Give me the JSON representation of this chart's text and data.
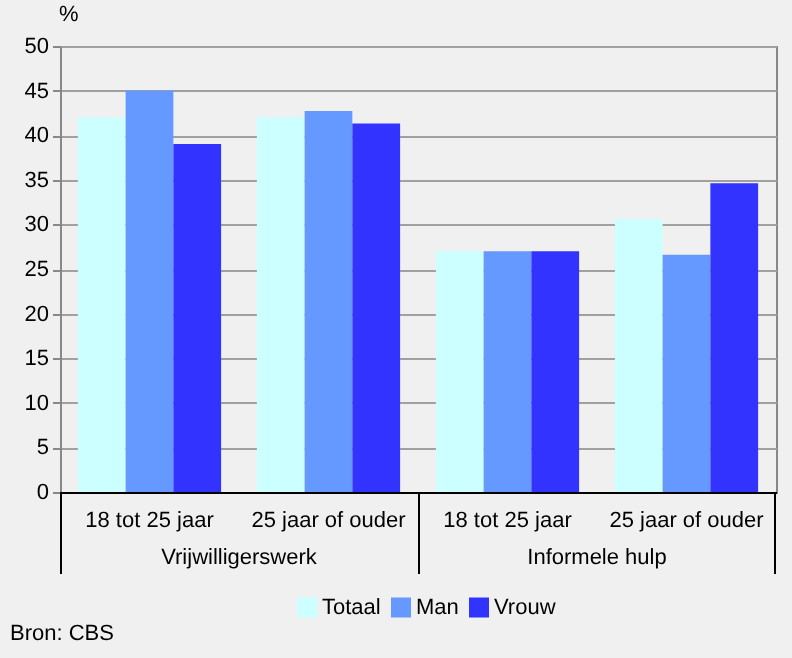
{
  "chart_data": {
    "type": "bar",
    "ylabel": "%",
    "categories": [
      "18 tot 25 jaar",
      "25 jaar of ouder",
      "18 tot 25 jaar",
      "25 jaar of ouder"
    ],
    "series": [
      {
        "name": "Totaal",
        "color": "#ccffff",
        "values": [
          42,
          42,
          27,
          30.6
        ]
      },
      {
        "name": "Man",
        "color": "#6699ff",
        "values": [
          45,
          42.7,
          27,
          26.6
        ]
      },
      {
        "name": "Vrouw",
        "color": "#3333ff",
        "values": [
          39,
          41.3,
          27,
          34.6
        ]
      }
    ],
    "ylim": [
      0,
      50
    ],
    "yticks": [
      0,
      5,
      10,
      15,
      20,
      25,
      30,
      35,
      40,
      45,
      50
    ],
    "grid": "y",
    "legend": "bottom",
    "annotations": [
      "Vrijwilligerswerk",
      "Informele hulp",
      "Bron: CBS"
    ]
  }
}
